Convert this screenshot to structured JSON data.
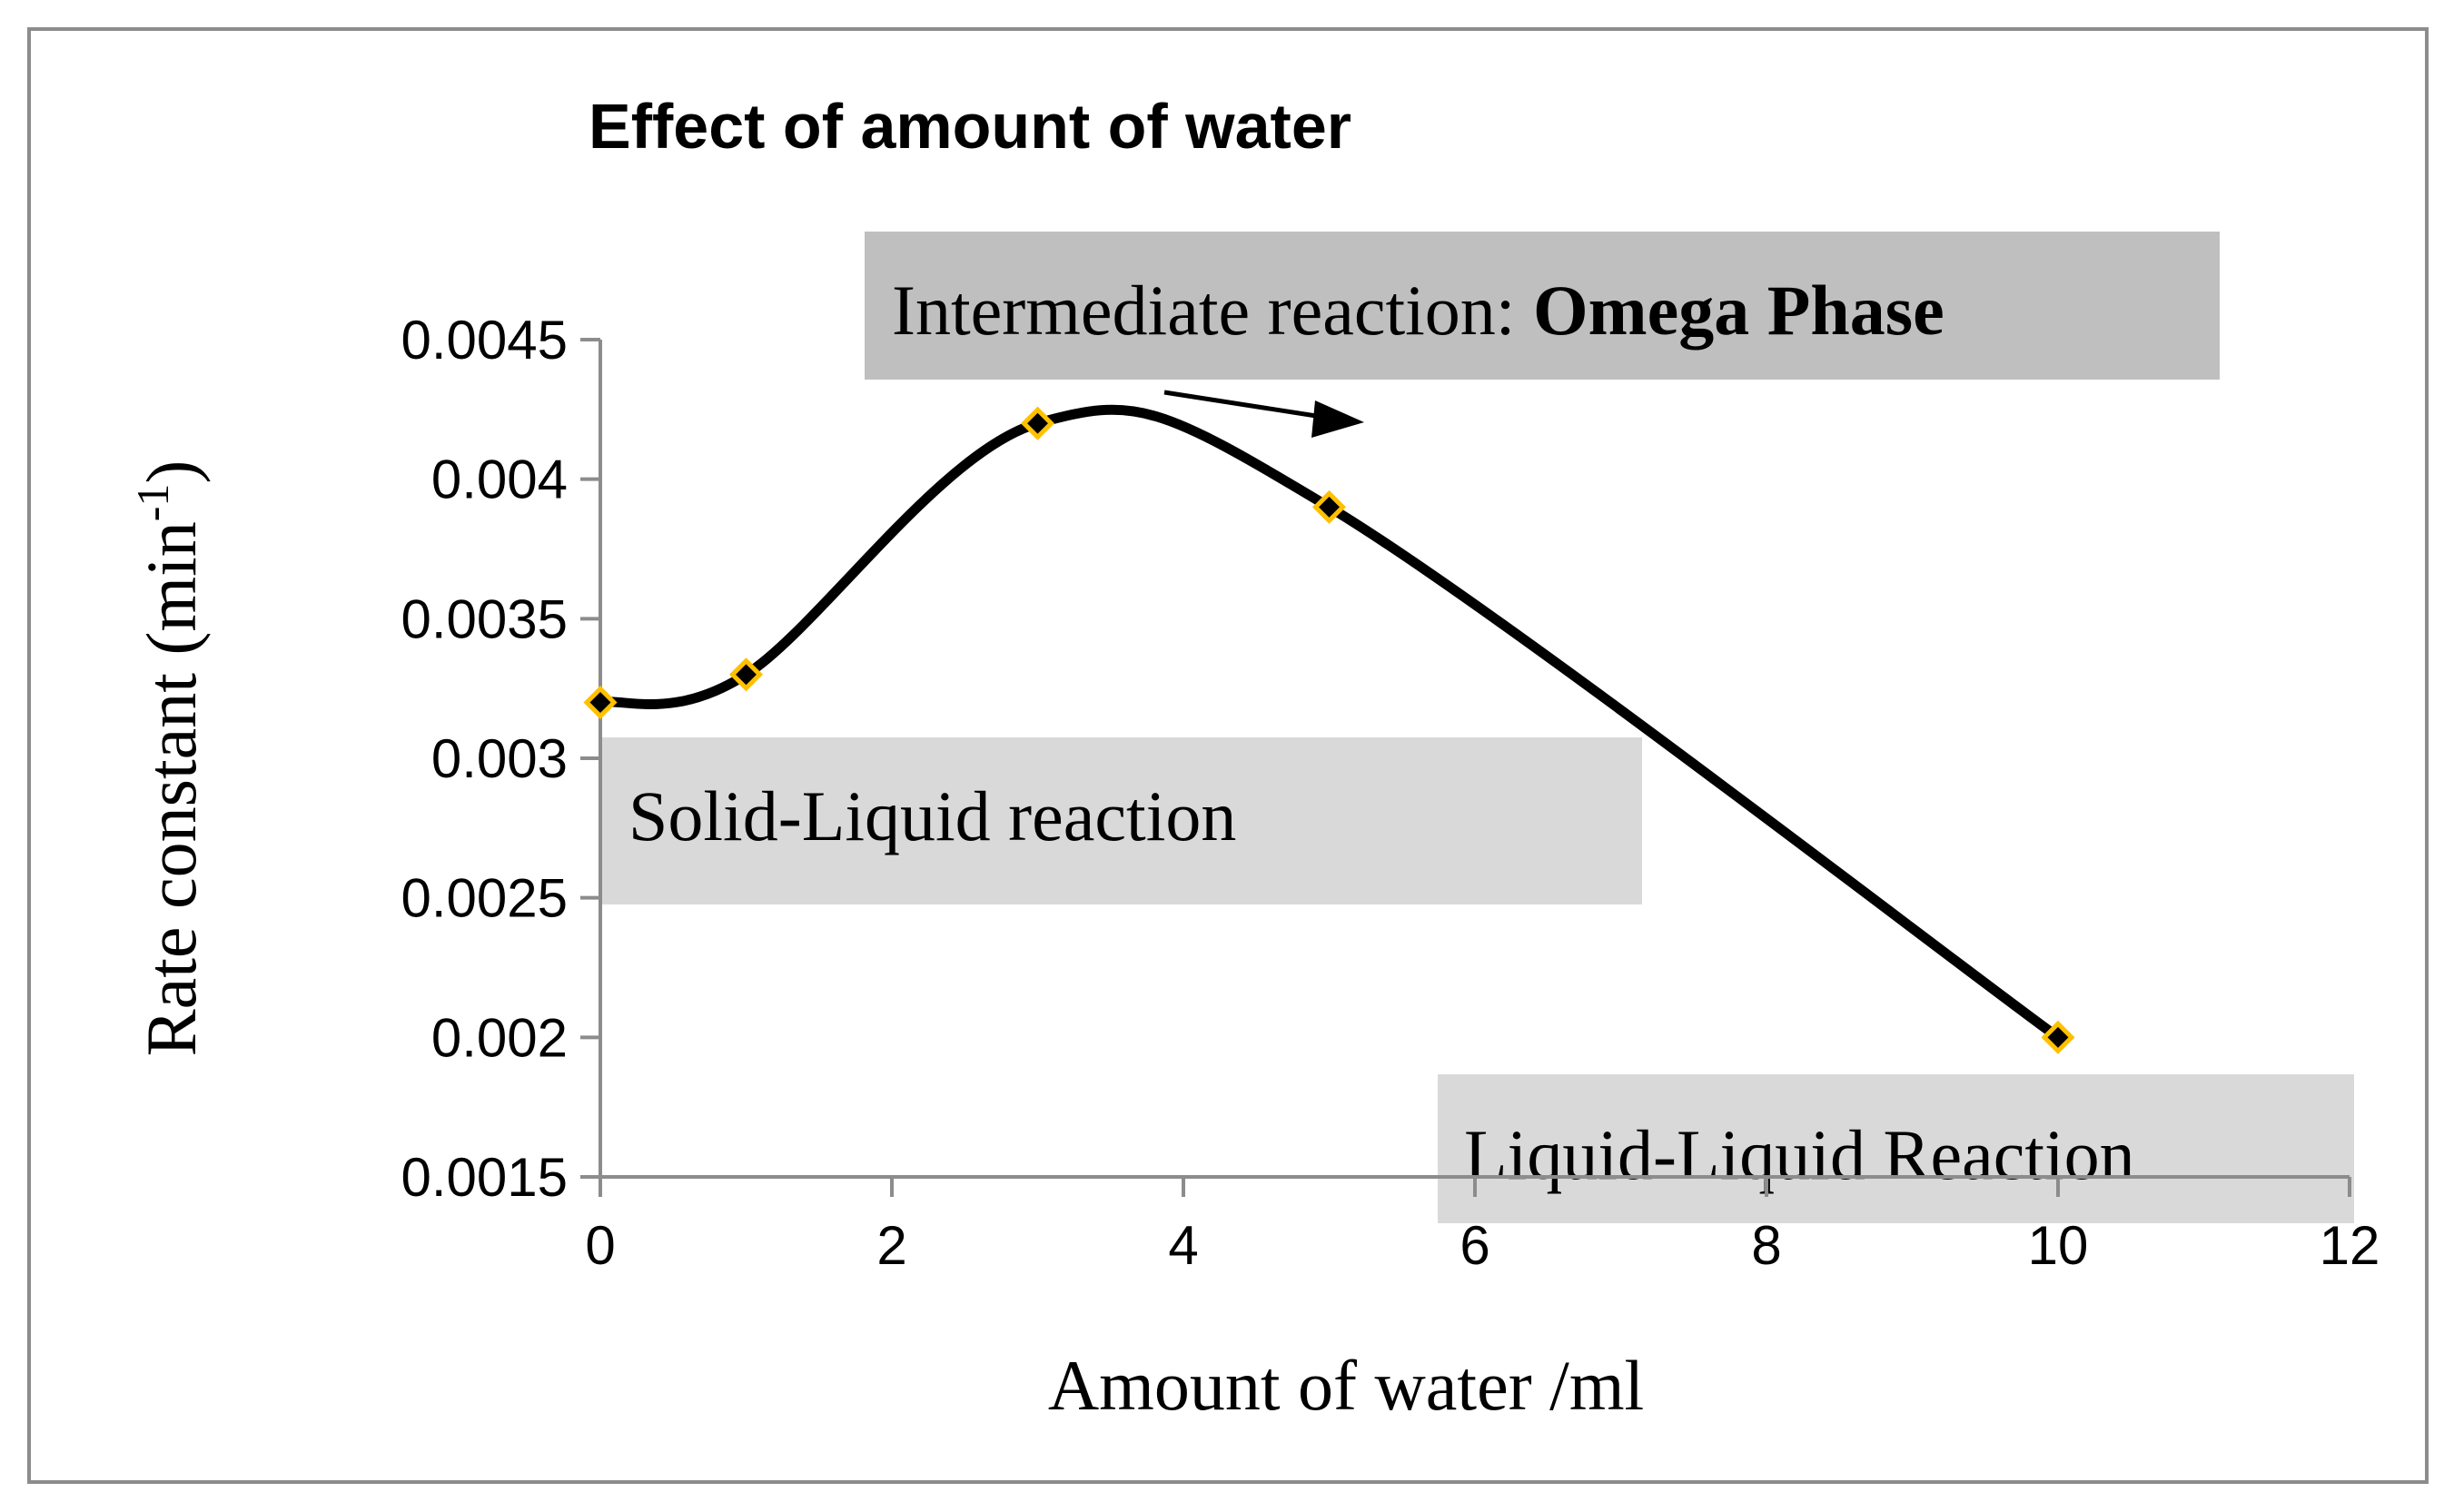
{
  "chart_data": {
    "type": "line",
    "smooth": true,
    "title": "Effect of amount of water",
    "xlabel": "Amount of water /ml",
    "ylabel_main": "Rate constant (min",
    "ylabel_sup": "-1",
    "ylabel_close": ")",
    "xlim": [
      0,
      12
    ],
    "ylim": [
      0.0015,
      0.0045
    ],
    "x_ticks": [
      "0",
      "2",
      "4",
      "6",
      "8",
      "10",
      "12"
    ],
    "x_tick_values": [
      0,
      2,
      4,
      6,
      8,
      10,
      12
    ],
    "y_ticks": [
      "0.0015",
      "0.002",
      "0.0025",
      "0.003",
      "0.0035",
      "0.004",
      "0.0045"
    ],
    "y_tick_values": [
      0.0015,
      0.002,
      0.0025,
      0.003,
      0.0035,
      0.004,
      0.0045
    ],
    "grid": false,
    "legend": "none",
    "series": [
      {
        "name": "Rate constant",
        "x": [
          0,
          1,
          3,
          5,
          10
        ],
        "values": [
          0.0032,
          0.0033,
          0.0042,
          0.0039,
          0.002
        ],
        "line_color": "#000000",
        "marker": "diamond",
        "marker_fill": "#000000",
        "marker_edge": "#ffc000"
      }
    ],
    "annotations": {
      "intermediate_prefix": "Intermediate reaction: ",
      "intermediate_bold": "Omega Phase",
      "solid_liquid": "Solid-Liquid reaction",
      "liquid_liquid": "Liquid-Liquid Reaction"
    }
  }
}
